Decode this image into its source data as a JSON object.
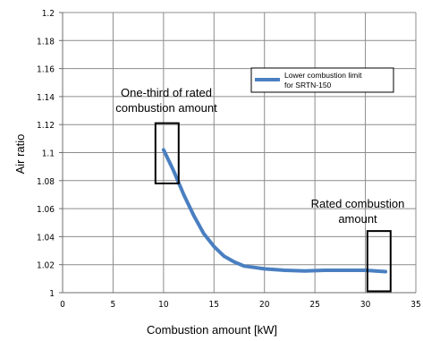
{
  "chart_data": {
    "type": "line",
    "xlabel": "Combustion amount [kW]",
    "ylabel": "Air ratio",
    "xlim": [
      0,
      35
    ],
    "ylim": [
      1.0,
      1.2
    ],
    "x_ticks": [
      "0",
      "5",
      "10",
      "15",
      "20",
      "25",
      "30",
      "35"
    ],
    "y_ticks": [
      "1",
      "1.02",
      "1.04",
      "1.06",
      "1.08",
      "1.1",
      "1.12",
      "1.14",
      "1.16",
      "1.18",
      "1.2"
    ],
    "grid": true,
    "legend_position": "upper-right",
    "series": [
      {
        "name": "Lower combustion limit for SRTN-150",
        "color": "#4a7fc1",
        "points": [
          [
            10,
            1.102
          ],
          [
            11,
            1.087
          ],
          [
            12,
            1.07
          ],
          [
            13,
            1.055
          ],
          [
            14,
            1.042
          ],
          [
            15,
            1.033
          ],
          [
            16,
            1.026
          ],
          [
            17,
            1.022
          ],
          [
            18,
            1.019
          ],
          [
            19,
            1.018
          ],
          [
            20,
            1.017
          ],
          [
            22,
            1.016
          ],
          [
            24,
            1.0155
          ],
          [
            26,
            1.016
          ],
          [
            28,
            1.016
          ],
          [
            30,
            1.016
          ],
          [
            31,
            1.0155
          ],
          [
            32,
            1.015
          ]
        ]
      }
    ],
    "annotations": [
      {
        "text": "One-third of rated combustion amount",
        "lines": [
          "One-third of rated",
          "combustion amount"
        ],
        "box_x": [
          9.2,
          11.5
        ],
        "box_y": [
          1.078,
          1.121
        ]
      },
      {
        "text": "Rated combustion amount",
        "lines": [
          "Rated combustion",
          "amount"
        ],
        "box_x": [
          30.2,
          32.5
        ],
        "box_y": [
          1.001,
          1.044
        ]
      }
    ]
  }
}
